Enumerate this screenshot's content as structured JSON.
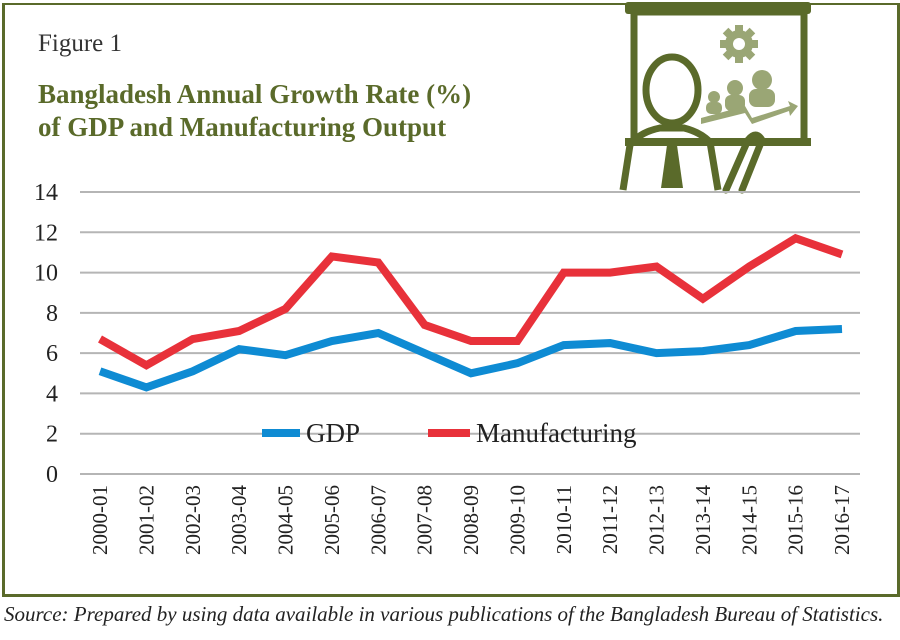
{
  "figure_label": "Figure 1",
  "title_line1": "Bangladesh Annual Growth Rate (%)",
  "title_line2": "of GDP and Manufacturing Output",
  "source": "Source: Prepared by using data available in various publications of the Bangladesh Bureau of Statistics.",
  "colors": {
    "frame": "#5a6a2a",
    "title": "#5a6a2a",
    "gdp": "#0e8bd3",
    "manufacturing": "#e8313a",
    "illustration": "#5a6a2a",
    "illustration_light": "#9aa675"
  },
  "illustration": {
    "icons": [
      "presenter-icon",
      "gear-icon",
      "team-growth-icon"
    ]
  },
  "chart_data": {
    "type": "line",
    "title": "Bangladesh Annual Growth Rate (%) of GDP and Manufacturing Output",
    "xlabel": "",
    "ylabel": "",
    "ylim": [
      0,
      14
    ],
    "yticks": [
      0,
      2,
      4,
      6,
      8,
      10,
      12,
      14
    ],
    "grid": true,
    "legend_placement": "inside-bottom-center",
    "categories": [
      "2000-01",
      "2001-02",
      "2002-03",
      "2003-04",
      "2004-05",
      "2005-06",
      "2006-07",
      "2007-08",
      "2008-09",
      "2009-10",
      "2010-11",
      "2011-12",
      "2012-13",
      "2013-14",
      "2014-15",
      "2015-16",
      "2016-17"
    ],
    "series": [
      {
        "name": "GDP",
        "color": "#0e8bd3",
        "values": [
          5.1,
          4.3,
          5.1,
          6.2,
          5.9,
          6.6,
          7.0,
          6.0,
          5.0,
          5.5,
          6.4,
          6.5,
          6.0,
          6.1,
          6.4,
          7.1,
          7.2
        ]
      },
      {
        "name": "Manufacturing",
        "color": "#e8313a",
        "values": [
          6.7,
          5.4,
          6.7,
          7.1,
          8.2,
          10.8,
          10.5,
          7.4,
          6.6,
          6.6,
          10.0,
          10.0,
          10.3,
          8.7,
          10.3,
          11.7,
          10.9
        ]
      }
    ]
  }
}
